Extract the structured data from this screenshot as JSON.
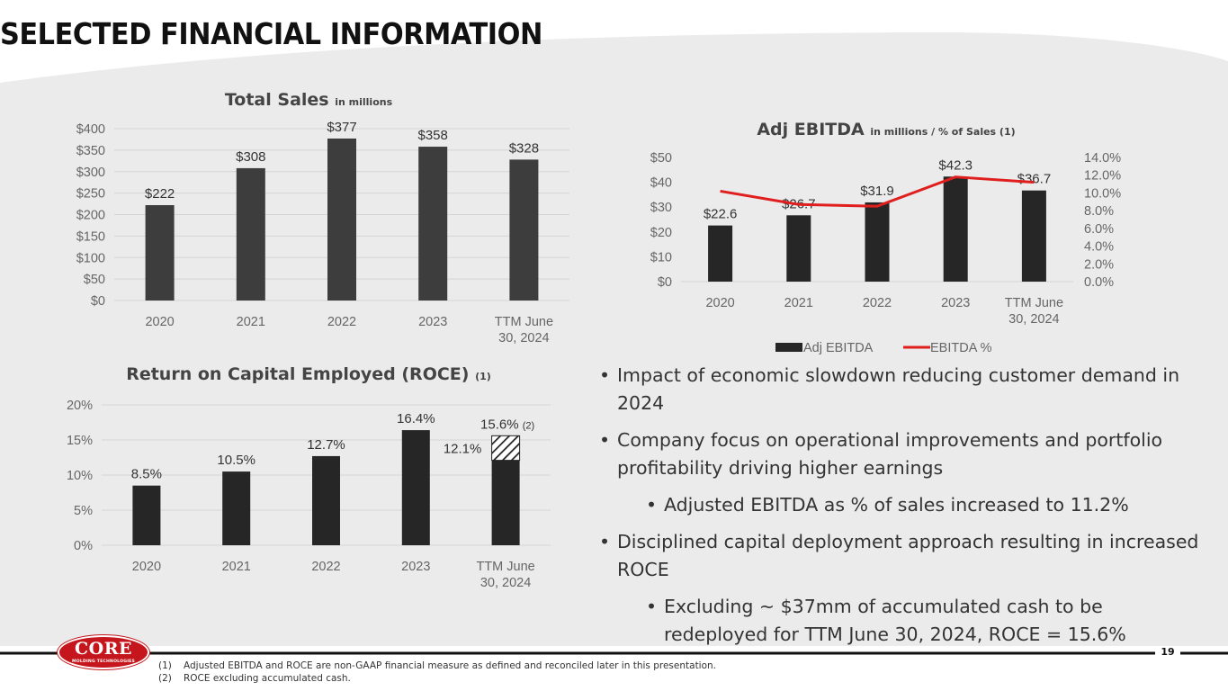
{
  "page": {
    "title": "SELECTED FINANCIAL INFORMATION",
    "page_number": "19",
    "logo": {
      "word": "CORE",
      "sub": "MOLDING TECHNOLOGIES"
    },
    "colors": {
      "bar": "#3d3d3d",
      "bar_dark": "#262626",
      "line": "#e01e1e",
      "band": "#ebebeb"
    }
  },
  "bullets": [
    {
      "level": 1,
      "text": "Impact of economic slowdown reducing customer demand in 2024"
    },
    {
      "level": 1,
      "text": "Company focus on operational improvements and portfolio profitability driving higher earnings"
    },
    {
      "level": 2,
      "text": "Adjusted EBITDA as % of sales increased to  11.2%"
    },
    {
      "level": 1,
      "text": "Disciplined capital deployment approach resulting in increased ROCE"
    },
    {
      "level": 2,
      "text": "Excluding ~ $37mm of accumulated cash to be redeployed for TTM June 30, 2024, ROCE = 15.6%"
    }
  ],
  "footnotes": [
    {
      "num": "(1)",
      "text": "Adjusted EBITDA and ROCE are non-GAAP financial measure as defined and reconciled later in this presentation."
    },
    {
      "num": "(2)",
      "text": "ROCE excluding accumulated cash."
    }
  ],
  "chart_data": [
    {
      "id": "total-sales",
      "type": "bar",
      "title": "Total Sales",
      "title_suffix": "in millions",
      "categories": [
        "2020",
        "2021",
        "2022",
        "2023",
        "TTM June 30, 2024"
      ],
      "category_lines": [
        [
          "2020"
        ],
        [
          "2021"
        ],
        [
          "2022"
        ],
        [
          "2023"
        ],
        [
          "TTM June",
          "30, 2024"
        ]
      ],
      "values": [
        222,
        308,
        377,
        358,
        328
      ],
      "data_labels": [
        "$222",
        "$308",
        "$377",
        "$358",
        "$328"
      ],
      "ylim": [
        0,
        400
      ],
      "yticks": [
        0,
        50,
        100,
        150,
        200,
        250,
        300,
        350,
        400
      ],
      "ytick_labels": [
        "$0",
        "$50",
        "$100",
        "$150",
        "$200",
        "$250",
        "$300",
        "$350",
        "$400"
      ],
      "grid": true
    },
    {
      "id": "adj-ebitda",
      "type": "bar",
      "title": "Adj EBITDA",
      "title_suffix": "in millions / % of  Sales (1)",
      "categories": [
        "2020",
        "2021",
        "2022",
        "2023",
        "TTM June 30, 2024"
      ],
      "category_lines": [
        [
          "2020"
        ],
        [
          "2021"
        ],
        [
          "2022"
        ],
        [
          "2023"
        ],
        [
          "TTM June",
          "30, 2024"
        ]
      ],
      "series": [
        {
          "name": "Adj EBITDA",
          "type": "bar",
          "values": [
            22.6,
            26.7,
            31.9,
            42.3,
            36.7
          ],
          "data_labels": [
            "$22.6",
            "$26.7",
            "$31.9",
            "$42.3",
            "$36.7"
          ]
        },
        {
          "name": "EBITDA %",
          "type": "line",
          "axis": "right",
          "values": [
            10.2,
            8.7,
            8.5,
            11.8,
            11.2
          ]
        }
      ],
      "ylim": [
        0,
        50
      ],
      "yticks": [
        0,
        10,
        20,
        30,
        40,
        50
      ],
      "ytick_labels": [
        "$0",
        "$10",
        "$20",
        "$30",
        "$40",
        "$50"
      ],
      "y2lim": [
        0,
        14
      ],
      "y2ticks": [
        0,
        2,
        4,
        6,
        8,
        10,
        12,
        14
      ],
      "y2tick_labels": [
        "0.0%",
        "2.0%",
        "4.0%",
        "6.0%",
        "8.0%",
        "10.0%",
        "12.0%",
        "14.0%"
      ],
      "legend": [
        "Adj EBITDA",
        "EBITDA %"
      ],
      "legend_position": "bottom",
      "grid": false
    },
    {
      "id": "roce",
      "type": "bar",
      "title": "Return on Capital Employed (ROCE)",
      "title_suffix": "(1)",
      "categories": [
        "2020",
        "2021",
        "2022",
        "2023",
        "TTM June 30, 2024"
      ],
      "category_lines": [
        [
          "2020"
        ],
        [
          "2021"
        ],
        [
          "2022"
        ],
        [
          "2023"
        ],
        [
          "TTM June",
          "30, 2024"
        ]
      ],
      "values": [
        8.5,
        10.5,
        12.7,
        16.4,
        12.1
      ],
      "data_labels": [
        "8.5%",
        "10.5%",
        "12.7%",
        "16.4%",
        "12.1%"
      ],
      "excluding_cash": {
        "category": "TTM June 30, 2024",
        "value": 15.6,
        "label": "15.6%",
        "note": "(2)"
      },
      "ylim": [
        0,
        20
      ],
      "yticks": [
        0,
        5,
        10,
        15,
        20
      ],
      "ytick_labels": [
        "0%",
        "5%",
        "10%",
        "15%",
        "20%"
      ],
      "grid": true
    }
  ]
}
